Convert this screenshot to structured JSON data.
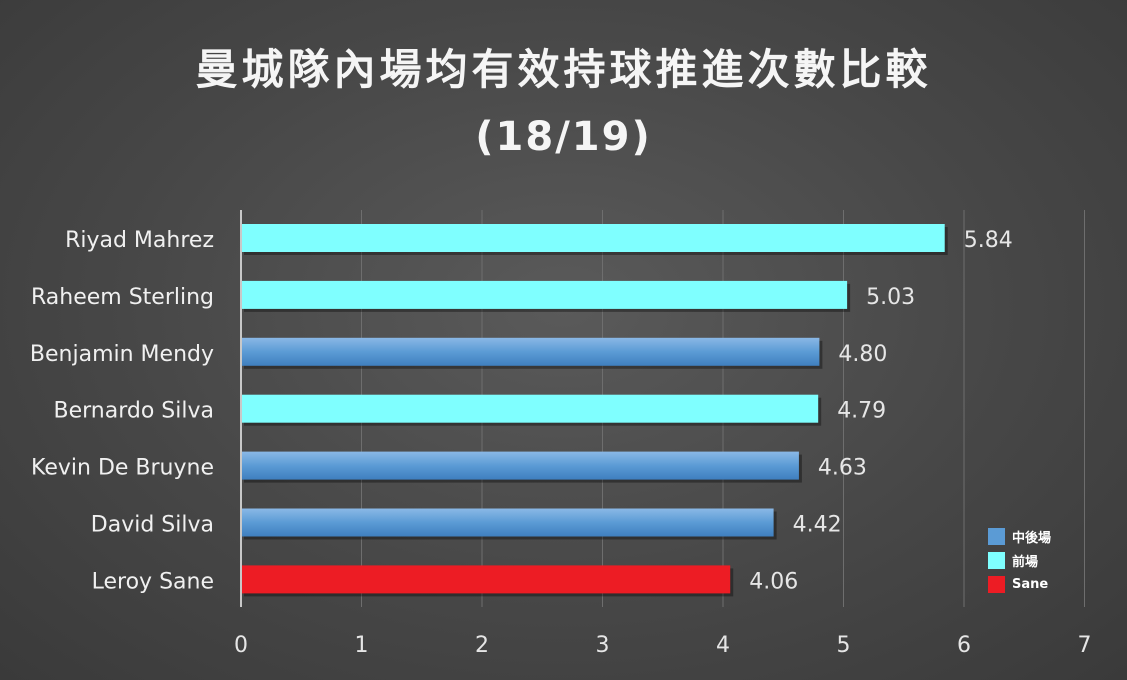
{
  "title": "曼城隊內場均有效持球推進次數比較",
  "subtitle": "(18/19)",
  "legend": [
    {
      "label": "中後場",
      "color": "#5b9bd5"
    },
    {
      "label": "前場",
      "color": "#7fffff"
    },
    {
      "label": "Sane",
      "color": "#ed1c24"
    }
  ],
  "chart_data": {
    "type": "bar",
    "orientation": "horizontal",
    "xlim": [
      0,
      7
    ],
    "x_ticks": [
      "0",
      "1",
      "2",
      "3",
      "4",
      "5",
      "6",
      "7"
    ],
    "grid": true,
    "legend_position": "bottom-right",
    "categories": [
      "Riyad Mahrez",
      "Raheem Sterling",
      "Benjamin Mendy",
      "Bernardo Silva",
      "Kevin De Bruyne",
      "David Silva",
      "Leroy Sane"
    ],
    "values": [
      5.84,
      5.03,
      4.8,
      4.79,
      4.63,
      4.42,
      4.06
    ],
    "value_labels": [
      "5.84",
      "5.03",
      "4.80",
      "4.79",
      "4.63",
      "4.42",
      "4.06"
    ],
    "groups": [
      "前場",
      "前場",
      "中後場",
      "前場",
      "中後場",
      "中後場",
      "Sane"
    ]
  }
}
